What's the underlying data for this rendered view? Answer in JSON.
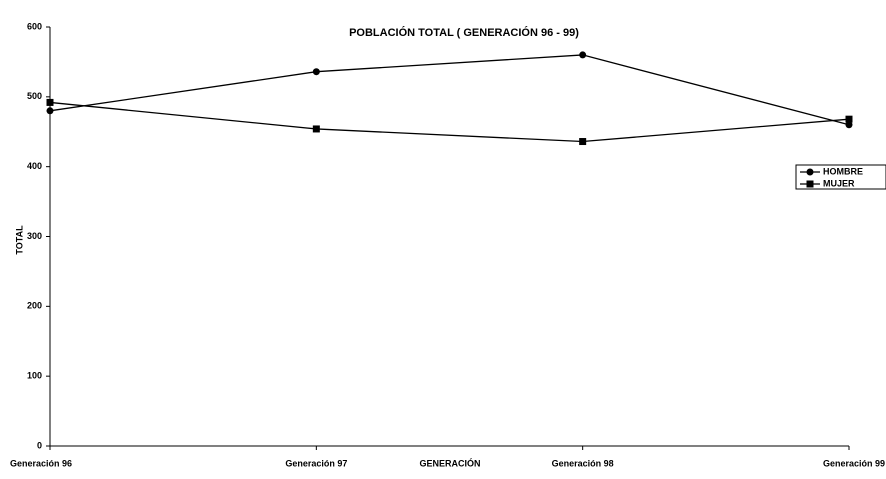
{
  "chart_data": {
    "type": "line",
    "title": "POBLACIÓN TOTAL ( GENERACIÓN 96 - 99)",
    "x_label": "GENERACIÓN",
    "y_label": "TOTAL",
    "categories": [
      "Generación 96",
      "Generación 97",
      "Generación 98",
      "Generación 99"
    ],
    "series": [
      {
        "name": "HOMBRE",
        "color": "#000000",
        "marker": "circle",
        "values": [
          480,
          536,
          560,
          460
        ]
      },
      {
        "name": "MUJER",
        "color": "#000000",
        "marker": "square",
        "values": [
          492,
          454,
          436,
          468
        ]
      }
    ],
    "ylim": [
      0,
      600
    ],
    "yticks": [
      0,
      100,
      200,
      300,
      400,
      500,
      600
    ],
    "legend": "right"
  }
}
